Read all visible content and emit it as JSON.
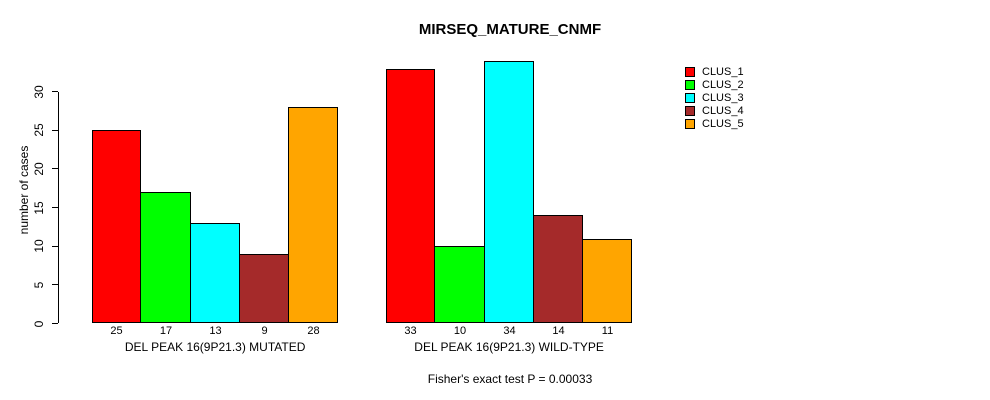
{
  "chart_data": {
    "type": "bar",
    "title": "MIRSEQ_MATURE_CNMF",
    "xlabel": "",
    "ylabel": "number of cases",
    "annotation": "Fisher's exact test P = 0.00033",
    "ylim": [
      0,
      30
    ],
    "yticks": [
      0,
      5,
      10,
      15,
      20,
      25,
      30
    ],
    "grid": false,
    "bar_value_labels": true,
    "legend_position": "right-outside",
    "categories": [
      "DEL PEAK 16(9P21.3) MUTATED",
      "DEL PEAK 16(9P21.3) WILD-TYPE"
    ],
    "series": [
      {
        "name": "CLUS_1",
        "color": "#FF0000",
        "values": [
          25,
          33
        ]
      },
      {
        "name": "CLUS_2",
        "color": "#00FF00",
        "values": [
          17,
          10
        ]
      },
      {
        "name": "CLUS_3",
        "color": "#00FFFF",
        "values": [
          13,
          34
        ]
      },
      {
        "name": "CLUS_4",
        "color": "#A52A2A",
        "values": [
          9,
          14
        ]
      },
      {
        "name": "CLUS_5",
        "color": "#FFA500",
        "values": [
          28,
          11
        ]
      }
    ]
  },
  "colors": {
    "background": "#FFFFFF",
    "axis": "#000000",
    "text": "#000000"
  }
}
